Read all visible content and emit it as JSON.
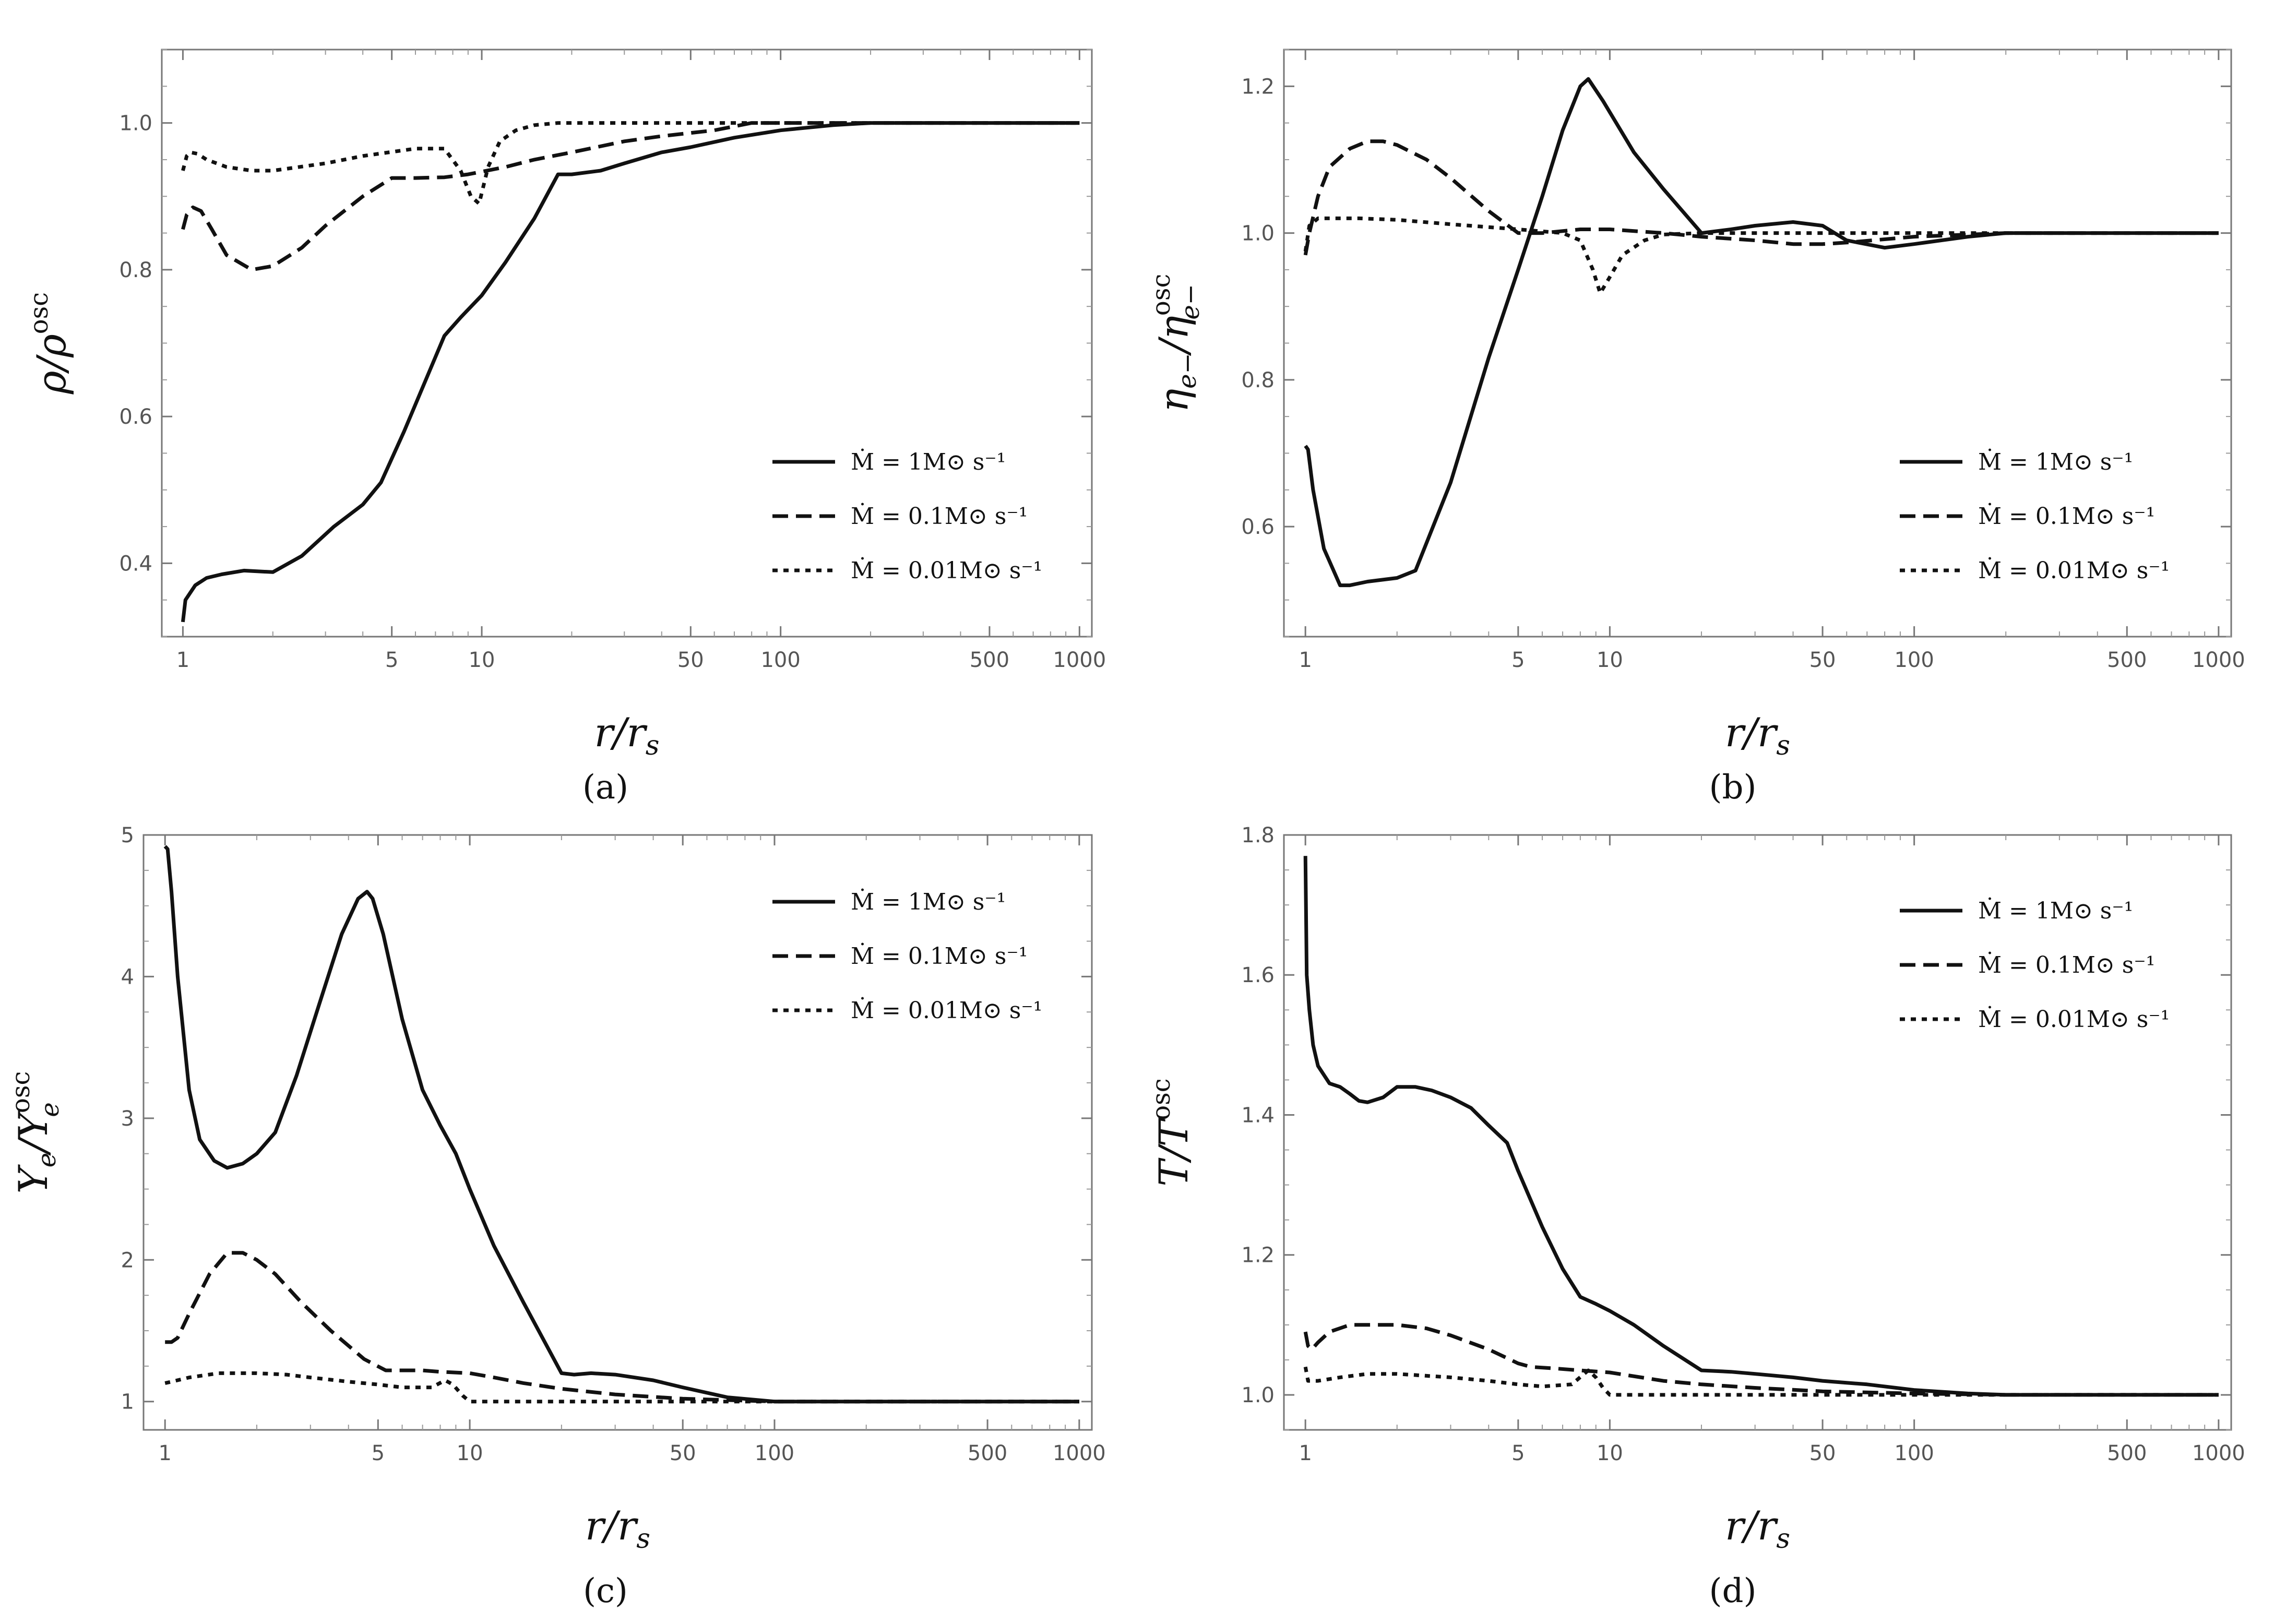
{
  "chart_data": [
    {
      "type": "line",
      "panel": "a",
      "caption": "(a)",
      "x_scale": "log",
      "xlim": [
        0.85,
        1100
      ],
      "ylim": [
        0.3,
        1.1
      ],
      "xticks": [
        1,
        5,
        10,
        50,
        100,
        500,
        1000
      ],
      "xtick_labels": [
        "1",
        "5",
        "10",
        "50",
        "100",
        "500",
        "1000"
      ],
      "yticks": [
        0.4,
        0.6,
        0.8,
        1.0
      ],
      "ytick_labels": [
        "0.4",
        "0.6",
        "0.8",
        "1.0"
      ],
      "xlabel": {
        "main": "r/r",
        "sub": "s"
      },
      "ylabel": {
        "main": "ρ/ρ",
        "sup": "osc"
      },
      "legend_position": "bottom-right",
      "series": [
        {
          "name": "Ṁ = 1M⊙ s⁻¹",
          "dash": "solid",
          "x": [
            1.0,
            1.02,
            1.1,
            1.2,
            1.35,
            1.6,
            2.0,
            2.5,
            3.2,
            4.0,
            4.6,
            5.5,
            6.5,
            7.5,
            8.5,
            10,
            12,
            15,
            18,
            20,
            25,
            30,
            40,
            50,
            70,
            100,
            150,
            200,
            300,
            500,
            1000
          ],
          "y": [
            0.32,
            0.35,
            0.37,
            0.38,
            0.385,
            0.39,
            0.388,
            0.41,
            0.45,
            0.48,
            0.51,
            0.58,
            0.65,
            0.71,
            0.735,
            0.765,
            0.81,
            0.87,
            0.93,
            0.93,
            0.935,
            0.945,
            0.96,
            0.967,
            0.98,
            0.99,
            0.997,
            1.0,
            1.0,
            1.0,
            1.0
          ]
        },
        {
          "name": "Ṁ = 0.1M⊙ s⁻¹",
          "dash": "dashed",
          "x": [
            1.0,
            1.03,
            1.08,
            1.15,
            1.25,
            1.4,
            1.7,
            2.0,
            2.5,
            3.0,
            4.0,
            5.0,
            6.0,
            7.5,
            9.0,
            12,
            15,
            20,
            30,
            40,
            60,
            80,
            100,
            200,
            500,
            1000
          ],
          "y": [
            0.855,
            0.875,
            0.885,
            0.88,
            0.855,
            0.82,
            0.8,
            0.805,
            0.83,
            0.86,
            0.9,
            0.925,
            0.925,
            0.926,
            0.93,
            0.94,
            0.95,
            0.96,
            0.975,
            0.982,
            0.99,
            1.0,
            1.0,
            1.0,
            1.0,
            1.0
          ]
        },
        {
          "name": "Ṁ = 0.01M⊙ s⁻¹",
          "dash": "dotted",
          "x": [
            1.0,
            1.03,
            1.06,
            1.12,
            1.2,
            1.4,
            1.7,
            2.0,
            3.0,
            4.0,
            6.0,
            7.5,
            8.5,
            9.2,
            9.8,
            10.5,
            11.5,
            13,
            15,
            18,
            20,
            30,
            50,
            100,
            200,
            500,
            1000
          ],
          "y": [
            0.935,
            0.955,
            0.96,
            0.958,
            0.95,
            0.94,
            0.935,
            0.935,
            0.945,
            0.955,
            0.965,
            0.965,
            0.935,
            0.9,
            0.89,
            0.94,
            0.975,
            0.99,
            0.997,
            1.0,
            1.0,
            1.0,
            1.0,
            1.0,
            1.0,
            1.0,
            1.0
          ]
        }
      ]
    },
    {
      "type": "line",
      "panel": "b",
      "caption": "(b)",
      "x_scale": "log",
      "xlim": [
        0.85,
        1100
      ],
      "ylim": [
        0.45,
        1.25
      ],
      "xticks": [
        1,
        5,
        10,
        50,
        100,
        500,
        1000
      ],
      "xtick_labels": [
        "1",
        "5",
        "10",
        "50",
        "100",
        "500",
        "1000"
      ],
      "yticks": [
        0.6,
        0.8,
        1.0,
        1.2
      ],
      "ytick_labels": [
        "0.6",
        "0.8",
        "1.0",
        "1.2"
      ],
      "xlabel": {
        "main": "r/r",
        "sub": "s"
      },
      "ylabel": {
        "main": "η",
        "sub": "e−",
        "mid": "/η",
        "sub2": "e−",
        "sup": "osc"
      },
      "legend_position": "bottom-right",
      "series": [
        {
          "name": "Ṁ = 1M⊙ s⁻¹",
          "dash": "solid",
          "x": [
            1.0,
            1.02,
            1.06,
            1.15,
            1.3,
            1.4,
            1.6,
            2.0,
            2.3,
            3.0,
            4.0,
            5.0,
            6.0,
            7.0,
            8.0,
            8.5,
            9.5,
            12,
            15,
            20,
            25,
            30,
            40,
            50,
            60,
            80,
            100,
            150,
            200,
            300,
            500,
            1000
          ],
          "y": [
            0.71,
            0.705,
            0.65,
            0.57,
            0.52,
            0.52,
            0.525,
            0.53,
            0.54,
            0.66,
            0.83,
            0.95,
            1.05,
            1.14,
            1.2,
            1.21,
            1.18,
            1.11,
            1.06,
            1.0,
            1.005,
            1.01,
            1.015,
            1.01,
            0.99,
            0.98,
            0.985,
            0.995,
            1.0,
            1.0,
            1.0,
            1.0
          ]
        },
        {
          "name": "Ṁ = 0.1M⊙ s⁻¹",
          "dash": "dashed",
          "x": [
            1.0,
            1.03,
            1.1,
            1.2,
            1.4,
            1.6,
            1.8,
            2.0,
            2.5,
            3.0,
            4.0,
            5.0,
            6.0,
            8.0,
            10,
            15,
            20,
            30,
            40,
            50,
            60,
            100,
            200,
            500,
            1000
          ],
          "y": [
            0.97,
            1.0,
            1.05,
            1.09,
            1.115,
            1.125,
            1.125,
            1.12,
            1.1,
            1.075,
            1.03,
            1.0,
            1.0,
            1.005,
            1.005,
            1.0,
            0.995,
            0.99,
            0.985,
            0.985,
            0.987,
            0.995,
            1.0,
            1.0,
            1.0
          ]
        },
        {
          "name": "Ṁ = 0.01M⊙ s⁻¹",
          "dash": "dotted",
          "x": [
            1.0,
            1.03,
            1.1,
            1.2,
            1.5,
            2.0,
            3.0,
            5.0,
            7.0,
            8.0,
            8.8,
            9.3,
            10,
            11,
            13,
            15,
            20,
            30,
            50,
            100,
            200,
            500,
            1000
          ],
          "y": [
            0.975,
            1.01,
            1.02,
            1.02,
            1.02,
            1.018,
            1.012,
            1.005,
            1.0,
            0.99,
            0.95,
            0.918,
            0.94,
            0.97,
            0.99,
            0.998,
            1.0,
            1.0,
            1.0,
            1.0,
            1.0,
            1.0,
            1.0
          ]
        }
      ]
    },
    {
      "type": "line",
      "panel": "c",
      "caption": "(c)",
      "x_scale": "log",
      "xlim": [
        0.85,
        1100
      ],
      "ylim": [
        0.8,
        5.0
      ],
      "xticks": [
        1,
        5,
        10,
        50,
        100,
        500,
        1000
      ],
      "xtick_labels": [
        "1",
        "5",
        "10",
        "50",
        "100",
        "500",
        "1000"
      ],
      "yticks": [
        1,
        2,
        3,
        4,
        5
      ],
      "ytick_labels": [
        "1",
        "2",
        "3",
        "4",
        "5"
      ],
      "xlabel": {
        "main": "r/r",
        "sub": "s"
      },
      "ylabel": {
        "main": "Y",
        "sub": "e",
        "mid": "/Y",
        "sub2": "e",
        "sup": "osc"
      },
      "legend_position": "top-right",
      "series": [
        {
          "name": "Ṁ = 1M⊙ s⁻¹",
          "dash": "solid",
          "x": [
            1.0,
            1.02,
            1.05,
            1.1,
            1.2,
            1.3,
            1.45,
            1.6,
            1.8,
            2.0,
            2.3,
            2.7,
            3.2,
            3.8,
            4.3,
            4.6,
            4.8,
            5.2,
            6.0,
            7.0,
            8.0,
            9.0,
            10,
            12,
            15,
            20,
            22,
            25,
            30,
            40,
            50,
            70,
            100,
            200,
            500,
            1000
          ],
          "y": [
            4.92,
            4.9,
            4.6,
            4.0,
            3.2,
            2.85,
            2.7,
            2.65,
            2.68,
            2.75,
            2.9,
            3.3,
            3.8,
            4.3,
            4.55,
            4.6,
            4.55,
            4.3,
            3.7,
            3.2,
            2.95,
            2.75,
            2.5,
            2.1,
            1.7,
            1.2,
            1.19,
            1.2,
            1.19,
            1.15,
            1.1,
            1.03,
            1.0,
            1.0,
            1.0,
            1.0
          ]
        },
        {
          "name": "Ṁ = 0.1M⊙ s⁻¹",
          "dash": "dashed",
          "x": [
            1.0,
            1.05,
            1.1,
            1.2,
            1.4,
            1.6,
            1.8,
            2.0,
            2.3,
            2.8,
            3.5,
            4.5,
            5.3,
            6.0,
            7.0,
            8.0,
            10,
            12,
            15,
            20,
            30,
            50,
            100,
            200,
            500,
            1000
          ],
          "y": [
            1.42,
            1.42,
            1.45,
            1.62,
            1.9,
            2.05,
            2.05,
            2.0,
            1.9,
            1.7,
            1.5,
            1.3,
            1.22,
            1.22,
            1.22,
            1.21,
            1.2,
            1.17,
            1.13,
            1.09,
            1.05,
            1.02,
            1.0,
            1.0,
            1.0,
            1.0
          ]
        },
        {
          "name": "Ṁ = 0.01M⊙ s⁻¹",
          "dash": "dotted",
          "x": [
            1.0,
            1.05,
            1.2,
            1.5,
            1.8,
            2.0,
            2.5,
            3.0,
            4.0,
            5.0,
            6.0,
            7.5,
            8.3,
            8.8,
            9.5,
            10,
            12,
            15,
            20,
            50,
            100,
            200,
            500,
            1000
          ],
          "y": [
            1.13,
            1.14,
            1.17,
            1.2,
            1.2,
            1.2,
            1.19,
            1.17,
            1.14,
            1.12,
            1.1,
            1.1,
            1.15,
            1.12,
            1.04,
            1.0,
            1.0,
            1.0,
            1.0,
            1.0,
            1.0,
            1.0,
            1.0,
            1.0
          ]
        }
      ]
    },
    {
      "type": "line",
      "panel": "d",
      "caption": "(d)",
      "x_scale": "log",
      "xlim": [
        0.85,
        1100
      ],
      "ylim": [
        0.95,
        1.8
      ],
      "xticks": [
        1,
        5,
        10,
        50,
        100,
        500,
        1000
      ],
      "xtick_labels": [
        "1",
        "5",
        "10",
        "50",
        "100",
        "500",
        "1000"
      ],
      "yticks": [
        1.0,
        1.2,
        1.4,
        1.6,
        1.8
      ],
      "ytick_labels": [
        "1.0",
        "1.2",
        "1.4",
        "1.6",
        "1.8"
      ],
      "xlabel": {
        "main": "r/r",
        "sub": "s"
      },
      "ylabel": {
        "main": "T/T",
        "sup": "osc"
      },
      "legend_position": "top-right",
      "series": [
        {
          "name": "Ṁ = 1M⊙ s⁻¹",
          "dash": "solid",
          "x": [
            1.0,
            1.01,
            1.03,
            1.06,
            1.1,
            1.2,
            1.3,
            1.4,
            1.5,
            1.6,
            1.8,
            2.0,
            2.3,
            2.6,
            3.0,
            3.5,
            4.0,
            4.6,
            5.0,
            6.0,
            7.0,
            8.0,
            9.0,
            10,
            12,
            15,
            20,
            25,
            30,
            40,
            50,
            70,
            100,
            150,
            200,
            500,
            1000
          ],
          "y": [
            1.77,
            1.6,
            1.55,
            1.5,
            1.47,
            1.445,
            1.44,
            1.43,
            1.42,
            1.418,
            1.425,
            1.44,
            1.44,
            1.435,
            1.425,
            1.41,
            1.385,
            1.36,
            1.32,
            1.24,
            1.18,
            1.14,
            1.13,
            1.12,
            1.1,
            1.07,
            1.035,
            1.033,
            1.03,
            1.025,
            1.02,
            1.015,
            1.007,
            1.002,
            1.0,
            1.0,
            1.0
          ]
        },
        {
          "name": "Ṁ = 0.1M⊙ s⁻¹",
          "dash": "dashed",
          "x": [
            1.0,
            1.02,
            1.05,
            1.1,
            1.2,
            1.4,
            1.6,
            1.8,
            2.0,
            2.5,
            3.0,
            4.0,
            5.0,
            5.5,
            6.5,
            8.0,
            10,
            15,
            20,
            30,
            50,
            100,
            200,
            500,
            1000
          ],
          "y": [
            1.09,
            1.07,
            1.065,
            1.075,
            1.09,
            1.1,
            1.1,
            1.1,
            1.1,
            1.095,
            1.085,
            1.065,
            1.045,
            1.04,
            1.038,
            1.035,
            1.032,
            1.02,
            1.015,
            1.01,
            1.005,
            1.002,
            1.0,
            1.0,
            1.0
          ]
        },
        {
          "name": "Ṁ = 0.01M⊙ s⁻¹",
          "dash": "dotted",
          "x": [
            1.0,
            1.02,
            1.1,
            1.3,
            1.6,
            2.0,
            3.0,
            4.0,
            5.0,
            6.0,
            7.5,
            8.5,
            9.0,
            9.5,
            10,
            12,
            20,
            50,
            100,
            200,
            500,
            1000
          ],
          "y": [
            1.04,
            1.02,
            1.02,
            1.025,
            1.03,
            1.03,
            1.025,
            1.02,
            1.015,
            1.012,
            1.015,
            1.035,
            1.025,
            1.01,
            1.0,
            1.0,
            1.0,
            1.0,
            1.0,
            1.0,
            1.0,
            1.0
          ]
        }
      ]
    }
  ]
}
